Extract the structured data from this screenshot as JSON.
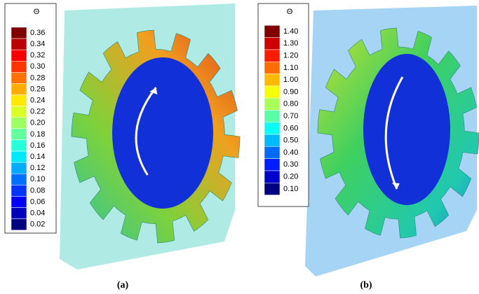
{
  "panels": [
    {
      "caption": "(a)",
      "legend": {
        "title": "Θ",
        "labels": [
          "0.36",
          "0.34",
          "0.32",
          "0.30",
          "0.28",
          "0.26",
          "0.24",
          "0.22",
          "0.20",
          "0.18",
          "0.16",
          "0.14",
          "0.12",
          "0.10",
          "0.08",
          "0.06",
          "0.04",
          "0.02"
        ]
      }
    },
    {
      "caption": "(b)",
      "legend": {
        "title": "Θ",
        "labels": [
          "1.40",
          "1.30",
          "1.20",
          "1.10",
          "1.00",
          "0.90",
          "0.80",
          "0.70",
          "0.60",
          "0.50",
          "0.40",
          "0.30",
          "0.20",
          "0.10"
        ]
      }
    }
  ]
}
